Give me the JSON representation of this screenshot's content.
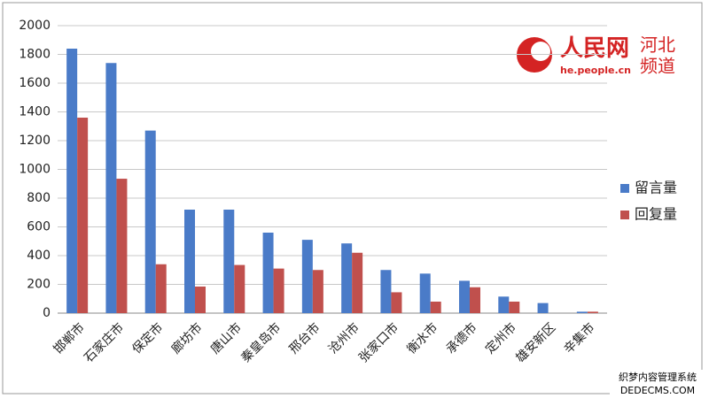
{
  "chart_data": {
    "type": "bar",
    "categories": [
      "邯郸市",
      "石家庄市",
      "保定市",
      "廊坊市",
      "唐山市",
      "秦皇岛市",
      "邢台市",
      "沧州市",
      "张家口市",
      "衡水市",
      "承德市",
      "定州市",
      "雄安新区",
      "辛集市"
    ],
    "series": [
      {
        "name": "留言量",
        "color": "#4a7bc8",
        "values": [
          1840,
          1740,
          1270,
          720,
          720,
          560,
          510,
          485,
          300,
          275,
          225,
          115,
          70,
          10
        ]
      },
      {
        "name": "回复量",
        "color": "#c0504d",
        "values": [
          1360,
          935,
          340,
          185,
          335,
          310,
          300,
          420,
          145,
          80,
          180,
          80,
          0,
          10
        ]
      }
    ],
    "ylim": [
      0,
      2000
    ],
    "yticks": [
      0,
      200,
      400,
      600,
      800,
      1000,
      1200,
      1400,
      1600,
      1800,
      2000
    ],
    "grid": true,
    "legend": "right"
  },
  "logo": {
    "name": "人民网",
    "region": "河北",
    "channel": "频道",
    "url": "he.people.cn"
  },
  "watermark": [
    "织梦内容管理系统",
    "DEDECMS.COM"
  ]
}
